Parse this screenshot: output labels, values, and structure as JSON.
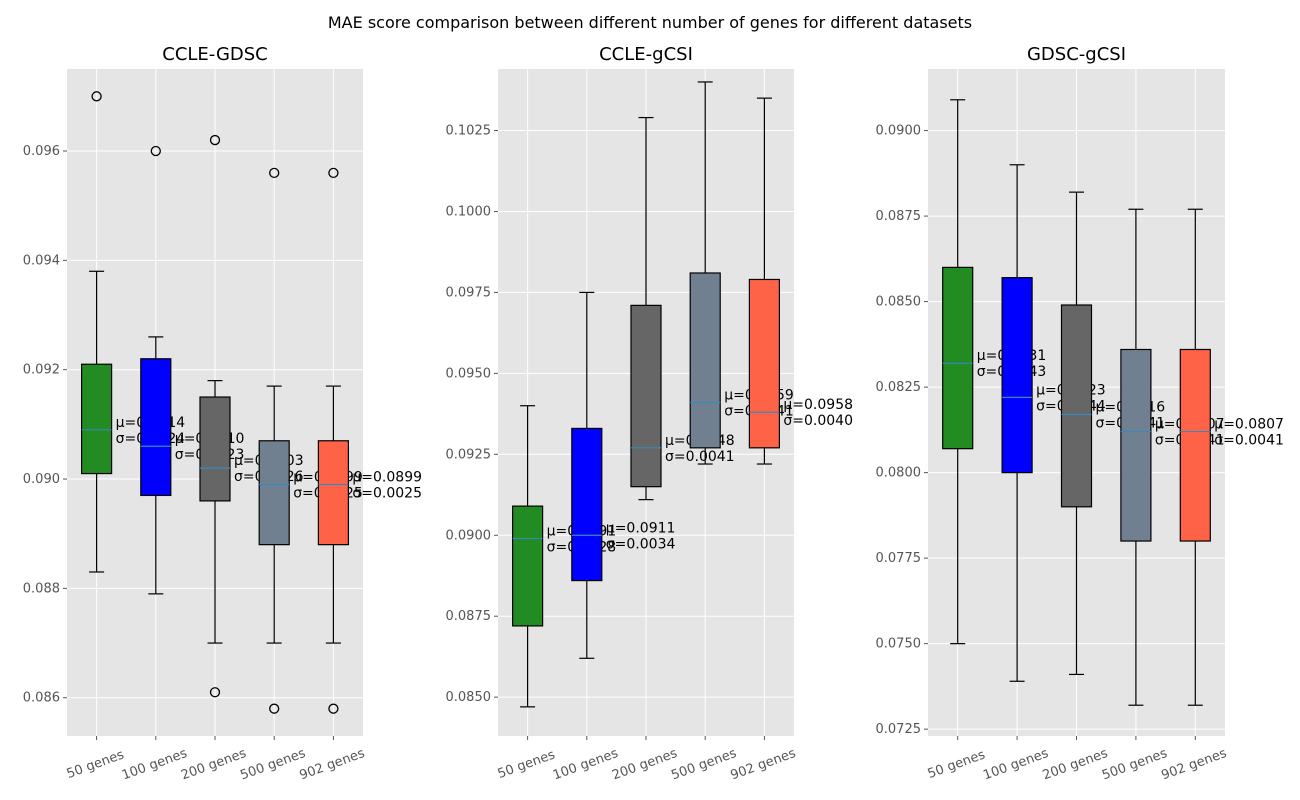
{
  "title": "MAE score comparison between different number of genes for different datasets",
  "colors": {
    "panel_bg": "#e5e5e5",
    "grid": "#ffffff",
    "median": "#348abd",
    "box_fill": [
      "#228b22",
      "#0000ff",
      "#666666",
      "#708090",
      "#ff6347"
    ],
    "text": "#000000",
    "tick_text": "#555555"
  },
  "chart_data": [
    {
      "type": "box",
      "title": "CCLE-GDSC",
      "categories": [
        "50 genes",
        "100 genes",
        "200 genes",
        "500 genes",
        "902 genes"
      ],
      "ylim": [
        0.0853,
        0.0975
      ],
      "yticks": [
        0.086,
        0.088,
        0.09,
        0.092,
        0.094,
        0.096
      ],
      "ytick_labels": [
        "0.086",
        "0.088",
        "0.090",
        "0.092",
        "0.094",
        "0.096"
      ],
      "grid": true,
      "boxes": [
        {
          "whisker_low": 0.0883,
          "q1": 0.0901,
          "median": 0.0909,
          "q3": 0.0921,
          "whisker_high": 0.0938,
          "outliers": [
            0.097
          ],
          "mean_label": "μ=0.0914",
          "std_label": "σ=0.0024"
        },
        {
          "whisker_low": 0.0879,
          "q1": 0.0897,
          "median": 0.0906,
          "q3": 0.0922,
          "whisker_high": 0.0926,
          "outliers": [
            0.096
          ],
          "mean_label": "μ=0.0910",
          "std_label": "σ=0.0023"
        },
        {
          "whisker_low": 0.087,
          "q1": 0.0896,
          "median": 0.0902,
          "q3": 0.0915,
          "whisker_high": 0.0918,
          "outliers": [
            0.0962,
            0.0861
          ],
          "mean_label": "μ=0.0903",
          "std_label": "σ=0.0026"
        },
        {
          "whisker_low": 0.087,
          "q1": 0.0888,
          "median": 0.0899,
          "q3": 0.0907,
          "whisker_high": 0.0917,
          "outliers": [
            0.0956,
            0.0858
          ],
          "mean_label": "μ=0.0899",
          "std_label": "σ=0.0025"
        },
        {
          "whisker_low": 0.087,
          "q1": 0.0888,
          "median": 0.0899,
          "q3": 0.0907,
          "whisker_high": 0.0917,
          "outliers": [
            0.0956,
            0.0858
          ],
          "mean_label": "μ=0.0899",
          "std_label": "σ=0.0025"
        }
      ]
    },
    {
      "type": "box",
      "title": "CCLE-gCSI",
      "categories": [
        "50 genes",
        "100 genes",
        "200 genes",
        "500 genes",
        "902 genes"
      ],
      "ylim": [
        0.0838,
        0.1044
      ],
      "yticks": [
        0.085,
        0.0875,
        0.09,
        0.0925,
        0.095,
        0.0975,
        0.1,
        0.1025
      ],
      "ytick_labels": [
        "0.0850",
        "0.0875",
        "0.0900",
        "0.0925",
        "0.0950",
        "0.0975",
        "0.1000",
        "0.1025"
      ],
      "grid": true,
      "boxes": [
        {
          "whisker_low": 0.0847,
          "q1": 0.0872,
          "median": 0.0899,
          "q3": 0.0909,
          "whisker_high": 0.094,
          "outliers": [],
          "mean_label": "μ=0.0891",
          "std_label": "σ=0.0028"
        },
        {
          "whisker_low": 0.0862,
          "q1": 0.0886,
          "median": 0.09,
          "q3": 0.0933,
          "whisker_high": 0.0975,
          "outliers": [],
          "mean_label": "μ=0.0911",
          "std_label": "σ=0.0034"
        },
        {
          "whisker_low": 0.0911,
          "q1": 0.0915,
          "median": 0.0927,
          "q3": 0.0971,
          "whisker_high": 0.1029,
          "outliers": [],
          "mean_label": "μ=0.0948",
          "std_label": "σ=0.0041"
        },
        {
          "whisker_low": 0.0922,
          "q1": 0.0927,
          "median": 0.0941,
          "q3": 0.0981,
          "whisker_high": 0.104,
          "outliers": [],
          "mean_label": "μ=0.0959",
          "std_label": "σ=0.0041"
        },
        {
          "whisker_low": 0.0922,
          "q1": 0.0927,
          "median": 0.0938,
          "q3": 0.0979,
          "whisker_high": 0.1035,
          "outliers": [],
          "mean_label": "μ=0.0958",
          "std_label": "σ=0.0040"
        }
      ]
    },
    {
      "type": "box",
      "title": "GDSC-gCSI",
      "categories": [
        "50 genes",
        "100 genes",
        "200 genes",
        "500 genes",
        "902 genes"
      ],
      "ylim": [
        0.0723,
        0.0918
      ],
      "yticks": [
        0.0725,
        0.075,
        0.0775,
        0.08,
        0.0825,
        0.085,
        0.0875,
        0.09
      ],
      "ytick_labels": [
        "0.0725",
        "0.0750",
        "0.0775",
        "0.0800",
        "0.0825",
        "0.0850",
        "0.0875",
        "0.0900"
      ],
      "grid": true,
      "boxes": [
        {
          "whisker_low": 0.075,
          "q1": 0.0807,
          "median": 0.0832,
          "q3": 0.086,
          "whisker_high": 0.0909,
          "outliers": [],
          "mean_label": "μ=0.0831",
          "std_label": "σ=0.0043"
        },
        {
          "whisker_low": 0.0739,
          "q1": 0.08,
          "median": 0.0822,
          "q3": 0.0857,
          "whisker_high": 0.089,
          "outliers": [],
          "mean_label": "μ=0.0823",
          "std_label": "σ=0.0044"
        },
        {
          "whisker_low": 0.0741,
          "q1": 0.079,
          "median": 0.0817,
          "q3": 0.0849,
          "whisker_high": 0.0882,
          "outliers": [],
          "mean_label": "μ=0.0816",
          "std_label": "σ=0.0041"
        },
        {
          "whisker_low": 0.0732,
          "q1": 0.078,
          "median": 0.0812,
          "q3": 0.0836,
          "whisker_high": 0.0877,
          "outliers": [],
          "mean_label": "μ=0.0807",
          "std_label": "σ=0.0041"
        },
        {
          "whisker_low": 0.0732,
          "q1": 0.078,
          "median": 0.0812,
          "q3": 0.0836,
          "whisker_high": 0.0877,
          "outliers": [],
          "mean_label": "μ=0.0807",
          "std_label": "σ=0.0041"
        }
      ]
    }
  ]
}
